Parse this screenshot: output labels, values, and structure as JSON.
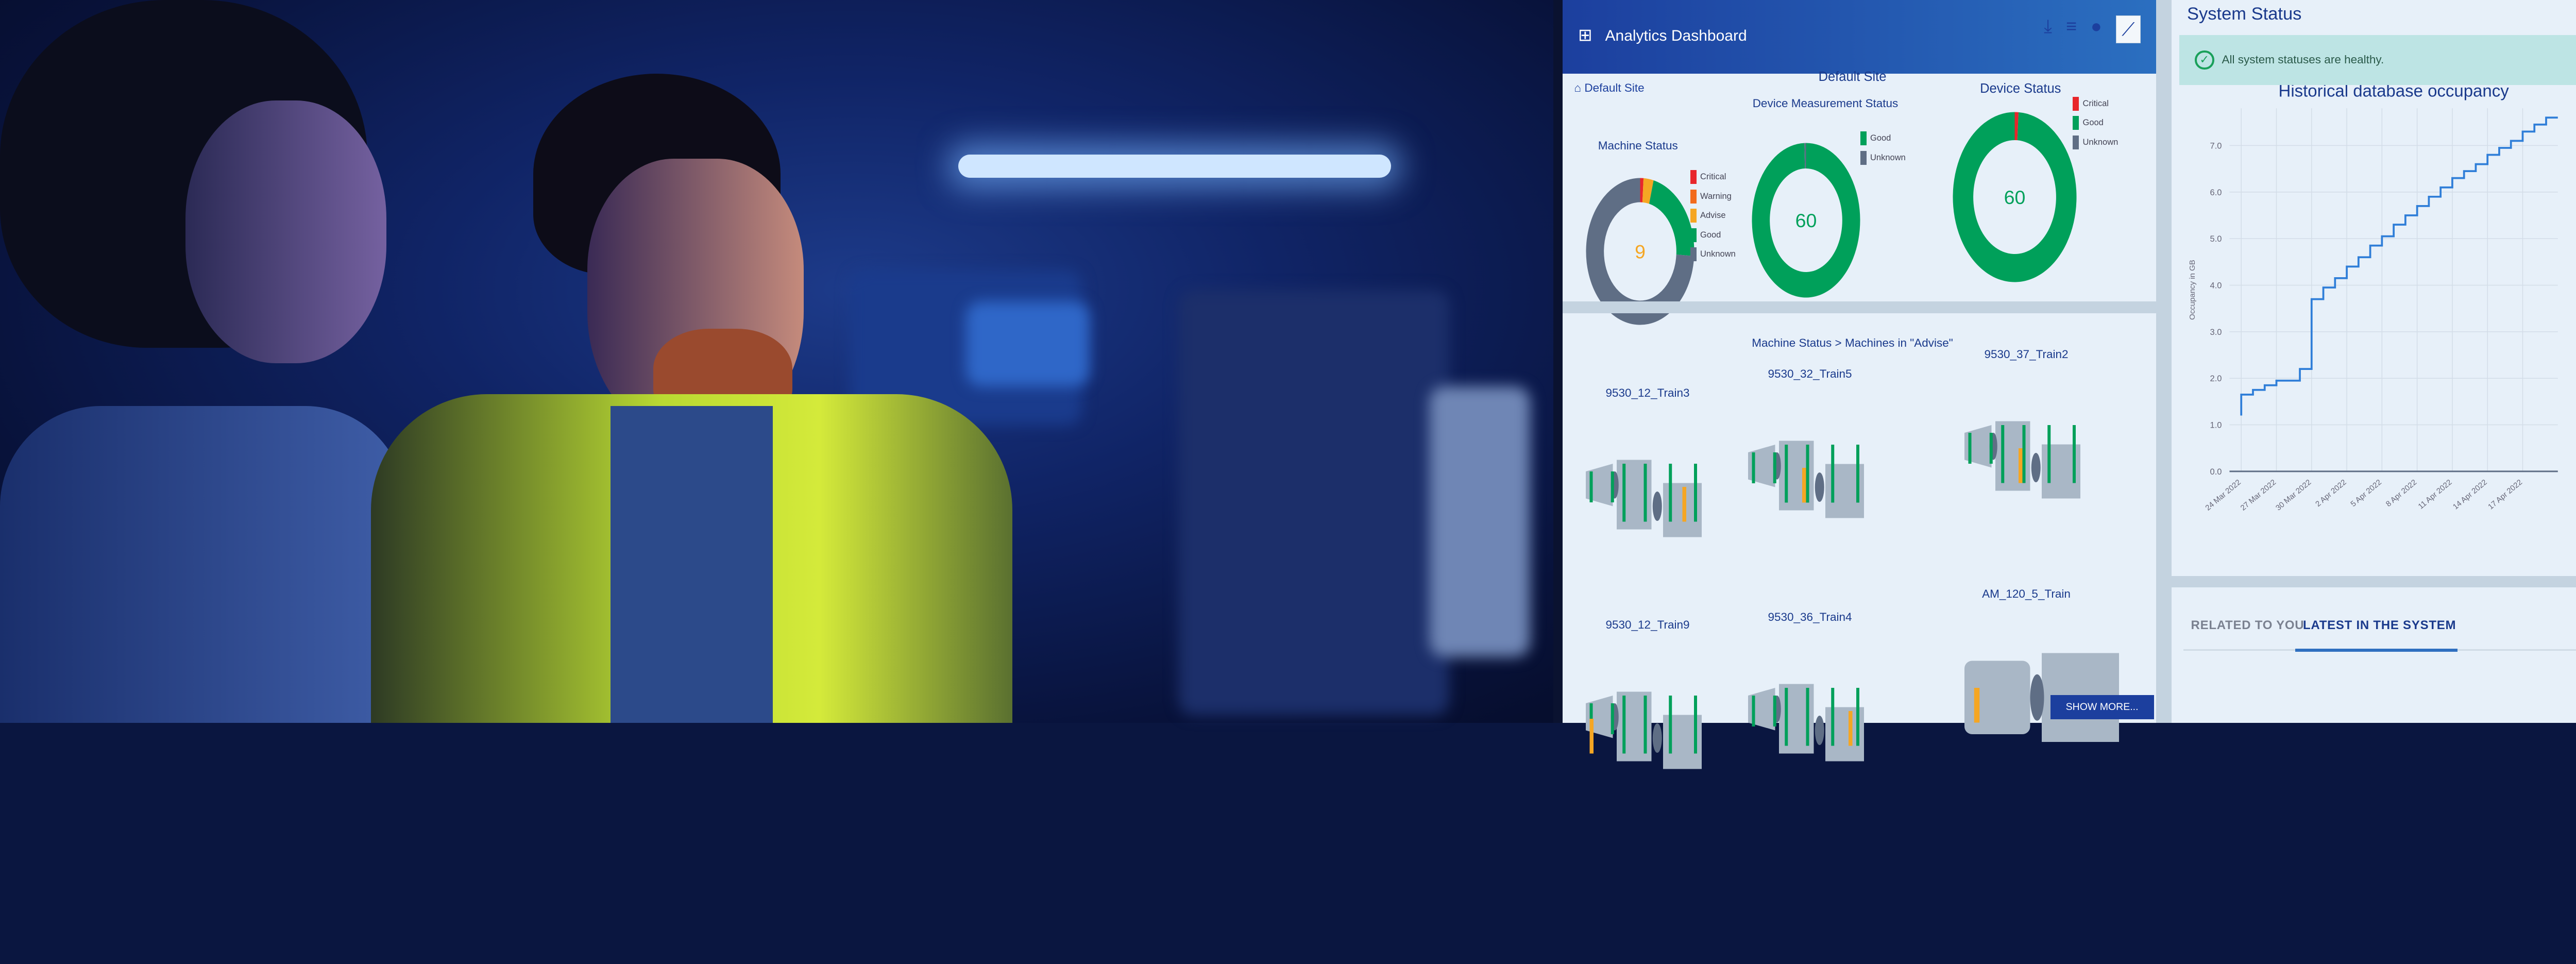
{
  "dashboard": {
    "title": "Analytics Dashboard",
    "breadcrumb": "Default Site",
    "toolbar_icons": [
      "download-icon",
      "filter-icon",
      "info-icon",
      "trend-chart-icon"
    ],
    "section_title": "Default Site",
    "charts": [
      {
        "title": "Machine Status",
        "center": "9",
        "legend": [
          {
            "label": "Critical",
            "color": "#e8262b"
          },
          {
            "label": "Warning",
            "color": "#f26b1d"
          },
          {
            "label": "Advise",
            "color": "#f5a623"
          },
          {
            "label": "Good",
            "color": "#00a05a"
          },
          {
            "label": "Unknown",
            "color": "#5f6e85"
          }
        ],
        "values": [
          1,
          0,
          3,
          22,
          74
        ]
      },
      {
        "title": "Device Measurement Status",
        "center": "60",
        "legend": [
          {
            "label": "Good",
            "color": "#00a05a"
          },
          {
            "label": "Unknown",
            "color": "#5f6e85"
          }
        ],
        "values": [
          99.5,
          0.5
        ]
      },
      {
        "title": "Device Status",
        "center": "60",
        "legend": [
          {
            "label": "Critical",
            "color": "#e8262b"
          },
          {
            "label": "Good",
            "color": "#00a05a"
          },
          {
            "label": "Unknown",
            "color": "#5f6e85"
          }
        ],
        "values": [
          1,
          99,
          0
        ]
      }
    ],
    "machines_title": "Machine Status > Machines in \"Advise\"",
    "machines": [
      "9530_12_Train3",
      "9530_32_Train5",
      "9530_37_Train2",
      "9530_12_Train9",
      "9530_36_Train4",
      "AM_120_5_Train"
    ],
    "show_more": "SHOW MORE..."
  },
  "system_status": {
    "title": "System Status",
    "message": "All system statuses are healthy.",
    "status_color": "#19a05a"
  },
  "tabs": [
    {
      "label": "RELATED TO YOU",
      "active": false
    },
    {
      "label": "LATEST IN THE SYSTEM",
      "active": true
    }
  ],
  "chart_data": {
    "type": "line",
    "title": "Historical database occupancy",
    "xlabel": "",
    "ylabel": "Occupancy in GB",
    "ylim": [
      0,
      7.8
    ],
    "yticks": [
      "0.0",
      "1.0",
      "2.0",
      "3.0",
      "4.0",
      "5.0",
      "6.0",
      "7.0"
    ],
    "xticks": [
      "24 Mar 2022",
      "27 Mar 2022",
      "30 Mar 2022",
      "2 Apr 2022",
      "5 Apr 2022",
      "8 Apr 2022",
      "11 Apr 2022",
      "14 Apr 2022",
      "17 Apr 2022"
    ],
    "grid": true,
    "step": true,
    "series": [
      {
        "color": "#2f7ed8",
        "x": [
          "2022-03-24",
          "2022-03-24",
          "2022-03-25",
          "2022-03-26",
          "2022-03-27",
          "2022-03-29",
          "2022-03-30",
          "2022-03-31",
          "2022-04-01",
          "2022-04-02",
          "2022-04-03",
          "2022-04-04",
          "2022-04-05",
          "2022-04-06",
          "2022-04-07",
          "2022-04-08",
          "2022-04-09",
          "2022-04-10",
          "2022-04-11",
          "2022-04-12",
          "2022-04-13",
          "2022-04-14",
          "2022-04-15",
          "2022-04-16",
          "2022-04-17",
          "2022-04-18",
          "2022-04-19"
        ],
        "y": [
          1.2,
          1.65,
          1.75,
          1.85,
          1.95,
          2.2,
          3.7,
          3.95,
          4.15,
          4.4,
          4.6,
          4.85,
          5.05,
          5.3,
          5.5,
          5.7,
          5.9,
          6.1,
          6.3,
          6.45,
          6.6,
          6.8,
          6.95,
          7.1,
          7.3,
          7.45,
          7.6
        ]
      }
    ]
  }
}
